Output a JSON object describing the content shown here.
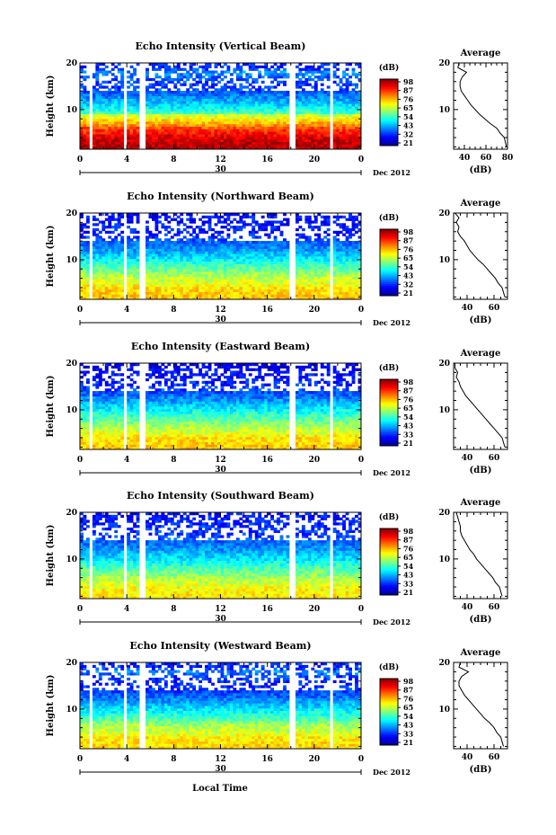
{
  "chart_data": [
    {
      "type": "heatmap",
      "title": "Echo Intensity (Vertical Beam)",
      "ylabel": "Height (km)",
      "x_ticks": [
        "0",
        "4",
        "8",
        "12",
        "16",
        "20",
        "0"
      ],
      "xlim": [
        0,
        24
      ],
      "y_ticks": [
        "10",
        "20"
      ],
      "ylim": [
        1.5,
        20
      ],
      "date_center": "30",
      "date_label": "Dec 2012",
      "colorbar": {
        "title": "(dB)",
        "ticks": [
          "98",
          "87",
          "76",
          "65",
          "54",
          "43",
          "32",
          "21"
        ]
      },
      "gaps_hours": [
        [
          0.8,
          1.1
        ],
        [
          3.6,
          4.0
        ],
        [
          5.0,
          5.6
        ],
        [
          17.8,
          18.4
        ],
        [
          21.4,
          21.7
        ]
      ],
      "average": {
        "title": "Average",
        "xlabel": "(dB)",
        "x_ticks": [
          "40",
          "60",
          "80"
        ],
        "xlim": [
          30,
          80
        ],
        "y_ticks": [
          "10",
          "20"
        ],
        "ylim": [
          1.5,
          20
        ],
        "height_km": [
          2,
          3,
          4,
          5,
          6,
          7,
          8,
          9,
          10,
          11,
          12,
          13,
          14,
          15,
          16,
          17,
          18,
          19,
          20
        ],
        "mean_db": [
          79,
          78,
          77,
          73,
          70,
          64,
          59,
          54,
          50,
          46,
          43,
          40,
          37,
          36,
          36,
          38,
          42,
          34,
          35
        ]
      }
    },
    {
      "type": "heatmap",
      "title": "Echo Intensity (Northward Beam)",
      "ylabel": "Height (km)",
      "x_ticks": [
        "0",
        "4",
        "8",
        "12",
        "16",
        "20",
        "0"
      ],
      "xlim": [
        0,
        24
      ],
      "y_ticks": [
        "10",
        "20"
      ],
      "ylim": [
        1.5,
        20
      ],
      "date_center": "30",
      "date_label": "Dec 2012",
      "colorbar": {
        "title": "(dB)",
        "ticks": [
          "98",
          "87",
          "76",
          "65",
          "54",
          "43",
          "32",
          "21"
        ]
      },
      "gaps_hours": [
        [
          0.8,
          1.1
        ],
        [
          3.6,
          4.0
        ],
        [
          5.0,
          5.6
        ],
        [
          17.8,
          18.4
        ],
        [
          21.4,
          21.7
        ]
      ],
      "average": {
        "title": "Average",
        "xlabel": "(dB)",
        "x_ticks": [
          "40",
          "60"
        ],
        "xlim": [
          30,
          70
        ],
        "y_ticks": [
          "10",
          "20"
        ],
        "ylim": [
          1.5,
          20
        ],
        "height_km": [
          2,
          3,
          4,
          5,
          6,
          7,
          8,
          9,
          10,
          11,
          12,
          13,
          14,
          15,
          16,
          17,
          18,
          19,
          20
        ],
        "mean_db": [
          68,
          67,
          66,
          63,
          61,
          58,
          55,
          52,
          48,
          45,
          42,
          40,
          38,
          35,
          33,
          34,
          32,
          34,
          31
        ]
      }
    },
    {
      "type": "heatmap",
      "title": "Echo Intensity (Eastward Beam)",
      "ylabel": "Height (km)",
      "x_ticks": [
        "0",
        "4",
        "8",
        "12",
        "16",
        "20",
        "0"
      ],
      "xlim": [
        0,
        24
      ],
      "y_ticks": [
        "10",
        "20"
      ],
      "ylim": [
        1.5,
        20
      ],
      "date_center": "30",
      "date_label": "Dec 2012",
      "colorbar": {
        "title": "(dB)",
        "ticks": [
          "98",
          "87",
          "76",
          "65",
          "54",
          "43",
          "33",
          "21"
        ]
      },
      "gaps_hours": [
        [
          0.8,
          1.1
        ],
        [
          3.6,
          4.0
        ],
        [
          5.0,
          5.6
        ],
        [
          17.8,
          18.4
        ],
        [
          21.4,
          21.7
        ]
      ],
      "average": {
        "title": "Average",
        "xlabel": "(dB)",
        "x_ticks": [
          "40",
          "60"
        ],
        "xlim": [
          30,
          70
        ],
        "y_ticks": [
          "10",
          "20"
        ],
        "ylim": [
          1.5,
          20
        ],
        "height_km": [
          2,
          3,
          4,
          5,
          6,
          7,
          8,
          9,
          10,
          11,
          12,
          13,
          14,
          15,
          16,
          17,
          18,
          19,
          20
        ],
        "mean_db": [
          68,
          67,
          66,
          63,
          60,
          57,
          54,
          51,
          48,
          45,
          42,
          39,
          37,
          35,
          34,
          32,
          33,
          31,
          31
        ]
      }
    },
    {
      "type": "heatmap",
      "title": "Echo Intensity (Southward Beam)",
      "ylabel": "Height (km)",
      "x_ticks": [
        "0",
        "4",
        "8",
        "12",
        "16",
        "20",
        "0"
      ],
      "xlim": [
        0,
        24
      ],
      "y_ticks": [
        "10",
        "20"
      ],
      "ylim": [
        1.5,
        20
      ],
      "date_center": "30",
      "date_label": "Dec 2012",
      "colorbar": {
        "title": "(dB)",
        "ticks": [
          "98",
          "87",
          "76",
          "65",
          "54",
          "43",
          "33",
          "21"
        ]
      },
      "gaps_hours": [
        [
          0.8,
          1.1
        ],
        [
          3.6,
          4.0
        ],
        [
          5.0,
          5.6
        ],
        [
          17.8,
          18.4
        ],
        [
          21.4,
          21.7
        ]
      ],
      "average": {
        "title": "Average",
        "xlabel": "(dB)",
        "x_ticks": [
          "40",
          "60"
        ],
        "xlim": [
          30,
          70
        ],
        "y_ticks": [
          "10",
          "20"
        ],
        "ylim": [
          1.5,
          20
        ],
        "height_km": [
          2,
          3,
          4,
          5,
          6,
          7,
          8,
          9,
          10,
          11,
          12,
          13,
          14,
          15,
          16,
          17,
          18,
          19,
          20
        ],
        "mean_db": [
          66,
          65,
          64,
          61,
          59,
          56,
          53,
          50,
          47,
          45,
          42,
          40,
          38,
          36,
          35,
          35,
          34,
          33,
          32
        ]
      }
    },
    {
      "type": "heatmap",
      "title": "Echo Intensity (Westward Beam)",
      "ylabel": "Height (km)",
      "x_ticks": [
        "0",
        "4",
        "8",
        "12",
        "16",
        "20",
        "0"
      ],
      "xlim": [
        0,
        24
      ],
      "y_ticks": [
        "10",
        "20"
      ],
      "ylim": [
        1.5,
        20
      ],
      "date_center": "30",
      "date_label": "Dec 2012",
      "colorbar": {
        "title": "(dB)",
        "ticks": [
          "98",
          "87",
          "76",
          "65",
          "54",
          "43",
          "33",
          "21"
        ]
      },
      "gaps_hours": [
        [
          0.8,
          1.1
        ],
        [
          3.6,
          4.0
        ],
        [
          5.0,
          5.6
        ],
        [
          17.8,
          18.4
        ],
        [
          21.4,
          21.7
        ]
      ],
      "average": {
        "title": "Average",
        "xlabel": "(dB)",
        "x_ticks": [
          "40",
          "60"
        ],
        "xlim": [
          30,
          70
        ],
        "y_ticks": [
          "10",
          "20"
        ],
        "ylim": [
          1.5,
          20
        ],
        "height_km": [
          2,
          3,
          4,
          5,
          6,
          7,
          8,
          9,
          10,
          11,
          12,
          13,
          14,
          15,
          16,
          17,
          18,
          19,
          20
        ],
        "mean_db": [
          67,
          66,
          65,
          62,
          60,
          57,
          53,
          50,
          47,
          44,
          41,
          38,
          36,
          34,
          34,
          36,
          41,
          34,
          35
        ]
      }
    }
  ],
  "xlabel_bottom": "Local Time"
}
